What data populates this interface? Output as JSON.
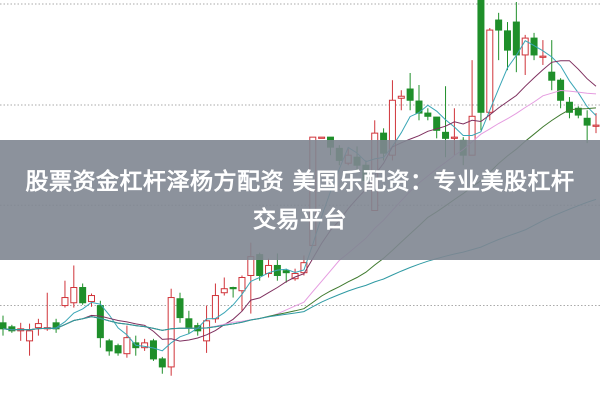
{
  "title": "股票资金杠杆泽杨方配资 美国乐配资：专业美股杠杆交易平台",
  "chart_data": {
    "type": "candlestick",
    "ylim": [
      0,
      100
    ],
    "grid": true,
    "gridlines": [
      99,
      73.8,
      48.8,
      23.8
    ],
    "colors": {
      "up": "#d0343a",
      "down": "#1f8f2a",
      "ma5": "#3aa6b6",
      "ma10": "#7e2f5e",
      "ma20": "#e59ce0",
      "ma30": "#3f7a2e",
      "ma60": "#2f9aa3",
      "grid": "#aaaaaa",
      "banner": "#80868f"
    },
    "moving_averages": [
      5,
      10,
      20,
      30,
      60
    ],
    "ohlc": [
      [
        19.5,
        21.3,
        16.3,
        18
      ],
      [
        18.5,
        19,
        17,
        17.5
      ],
      [
        17.5,
        19.5,
        15,
        18
      ],
      [
        15,
        19.3,
        11.3,
        17.5
      ],
      [
        18.3,
        20.5,
        16.3,
        19.3
      ],
      [
        18,
        27,
        17.5,
        18.3
      ],
      [
        19.5,
        20.5,
        17,
        18
      ],
      [
        23.8,
        30,
        23.3,
        25.8
      ],
      [
        24.5,
        33.8,
        23.3,
        28.3
      ],
      [
        28.3,
        29.3,
        24,
        24.5
      ],
      [
        24.8,
        26.8,
        23.5,
        26.3
      ],
      [
        23.8,
        25,
        13.3,
        15.8
      ],
      [
        15,
        15.5,
        11.3,
        12.5
      ],
      [
        13.8,
        14.3,
        11.3,
        12
      ],
      [
        11.8,
        18.8,
        10.8,
        15.8
      ],
      [
        14.5,
        16.3,
        11.3,
        13.3
      ],
      [
        13.3,
        15.5,
        12.5,
        14.5
      ],
      [
        15,
        15.5,
        10,
        10.5
      ],
      [
        10.5,
        11,
        6.8,
        8.5
      ],
      [
        8.5,
        28,
        6.3,
        25.8
      ],
      [
        25.5,
        27,
        19.5,
        20.8
      ],
      [
        20.5,
        22.5,
        16.8,
        18.3
      ],
      [
        18.8,
        19.5,
        16.3,
        17.5
      ],
      [
        15,
        23.8,
        12,
        20
      ],
      [
        20.5,
        29.3,
        19.5,
        26.3
      ],
      [
        27,
        30.8,
        26.3,
        28
      ],
      [
        28.3,
        28.5,
        25.8,
        28
      ],
      [
        27.5,
        31.3,
        22.5,
        30.8
      ],
      [
        31.3,
        39.5,
        21.8,
        36
      ],
      [
        36.5,
        37,
        30,
        31.3
      ],
      [
        31.8,
        35.5,
        30.8,
        33.8
      ],
      [
        33.8,
        36.8,
        30,
        31.3
      ],
      [
        32.5,
        33,
        29.5,
        32
      ],
      [
        30.5,
        33,
        30,
        31.8
      ],
      [
        32,
        36.3,
        31.3,
        34.5
      ],
      [
        38.8,
        65.8,
        38.8,
        65.8
      ],
      [
        65.5,
        65.8,
        65.5,
        65.8
      ],
      [
        65.8,
        65.8,
        61.3,
        63.3
      ],
      [
        63,
        63.8,
        58.8,
        60
      ],
      [
        59.3,
        63,
        58.8,
        61.3
      ],
      [
        60.8,
        63.5,
        56.8,
        58.8
      ],
      [
        58.8,
        60,
        53.8,
        55
      ],
      [
        47.5,
        70,
        47.5,
        66.8
      ],
      [
        66.8,
        68,
        60,
        61.8
      ],
      [
        61.3,
        80,
        60,
        75
      ],
      [
        75.5,
        77.5,
        72.5,
        76
      ],
      [
        77.8,
        81.8,
        72.5,
        75
      ],
      [
        74.8,
        78.8,
        70,
        71.8
      ],
      [
        71.8,
        73,
        70,
        71
      ],
      [
        70.8,
        70.8,
        65.5,
        67.5
      ],
      [
        67,
        78.5,
        60.8,
        65.5
      ],
      [
        65.5,
        73,
        61.3,
        65.8
      ],
      [
        65,
        65.8,
        58.8,
        61.3
      ],
      [
        61.3,
        85,
        61.3,
        71
      ],
      [
        100,
        100,
        67.5,
        72
      ],
      [
        72,
        93,
        70,
        92.5
      ],
      [
        95,
        96.8,
        85,
        92.5
      ],
      [
        92.3,
        94.5,
        82.5,
        87.5
      ],
      [
        94.5,
        99.5,
        82,
        86.3
      ],
      [
        86.3,
        91.3,
        81.3,
        90.5
      ],
      [
        90.5,
        91.8,
        85,
        86.3
      ],
      [
        86,
        90,
        83.8,
        86
      ],
      [
        82,
        90,
        77.5,
        80
      ],
      [
        80,
        80.5,
        73,
        75
      ],
      [
        74.5,
        75.8,
        70.5,
        72
      ],
      [
        73,
        73.5,
        70.5,
        71.3
      ],
      [
        70.5,
        72.5,
        64.3,
        68.8
      ],
      [
        68.5,
        71.8,
        66.8,
        68.8
      ]
    ]
  }
}
